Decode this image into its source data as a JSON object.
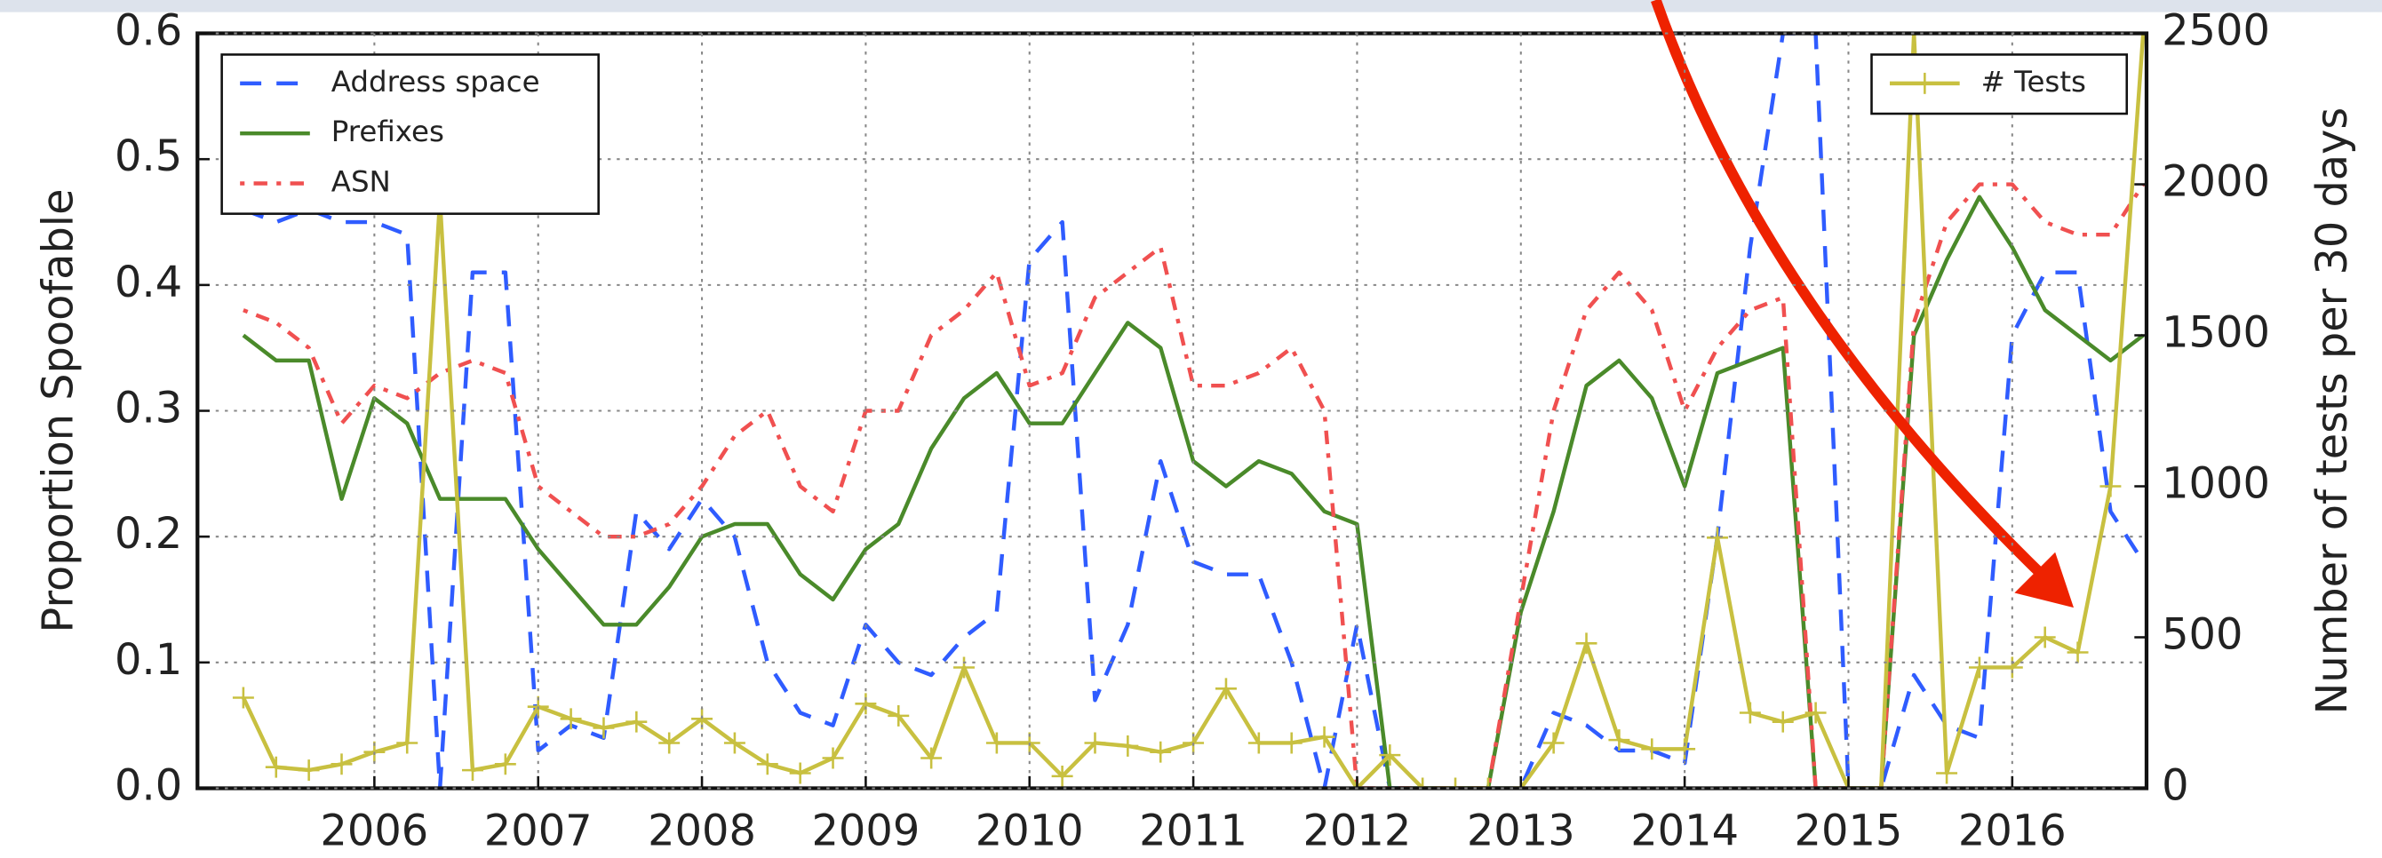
{
  "chart_data": {
    "type": "line",
    "x": [
      2005.2,
      2005.4,
      2005.6,
      2005.8,
      2006.0,
      2006.2,
      2006.4,
      2006.6,
      2006.8,
      2007.0,
      2007.2,
      2007.4,
      2007.6,
      2007.8,
      2008.0,
      2008.2,
      2008.4,
      2008.6,
      2008.8,
      2009.0,
      2009.2,
      2009.4,
      2009.6,
      2009.8,
      2010.0,
      2010.2,
      2010.4,
      2010.6,
      2010.8,
      2011.0,
      2011.2,
      2011.4,
      2011.6,
      2011.8,
      2012.0,
      2012.2,
      2012.4,
      2012.6,
      2012.8,
      2013.0,
      2013.2,
      2013.4,
      2013.6,
      2013.8,
      2014.0,
      2014.2,
      2014.4,
      2014.6,
      2014.8,
      2015.0,
      2015.2,
      2015.4,
      2015.6,
      2015.8,
      2016.0,
      2016.2,
      2016.4,
      2016.6,
      2016.8
    ],
    "series": [
      {
        "name": "Address space",
        "color": "#2f5cff",
        "dash": "14,10",
        "values": [
          0.46,
          0.45,
          0.46,
          0.45,
          0.45,
          0.44,
          0.0,
          0.41,
          0.41,
          0.03,
          0.05,
          0.04,
          0.22,
          0.19,
          0.23,
          0.2,
          0.1,
          0.06,
          0.05,
          0.13,
          0.1,
          0.09,
          0.12,
          0.14,
          0.42,
          0.45,
          0.07,
          0.13,
          0.26,
          0.18,
          0.17,
          0.17,
          0.1,
          0.0,
          0.13,
          0.0,
          0.0,
          0.0,
          0.0,
          0.0,
          0.06,
          0.05,
          0.03,
          0.03,
          0.02,
          0.2,
          0.43,
          0.6,
          0.6,
          0.0,
          0.0,
          0.09,
          0.05,
          0.04,
          0.36,
          0.41,
          0.41,
          0.22,
          0.18
        ]
      },
      {
        "name": "Prefixes",
        "color": "#4a8a2a",
        "dash": "none",
        "values": [
          0.36,
          0.34,
          0.34,
          0.23,
          0.31,
          0.29,
          0.23,
          0.23,
          0.23,
          0.19,
          0.16,
          0.13,
          0.13,
          0.16,
          0.2,
          0.21,
          0.21,
          0.17,
          0.15,
          0.19,
          0.21,
          0.27,
          0.31,
          0.33,
          0.29,
          0.29,
          0.33,
          0.37,
          0.35,
          0.26,
          0.24,
          0.26,
          0.25,
          0.22,
          0.21,
          0.0,
          0.0,
          0.0,
          0.0,
          0.14,
          0.22,
          0.32,
          0.34,
          0.31,
          0.24,
          0.33,
          0.34,
          0.35,
          0.0,
          0.0,
          0.0,
          0.36,
          0.42,
          0.47,
          0.43,
          0.38,
          0.36,
          0.34,
          0.36
        ]
      },
      {
        "name": "ASN",
        "color": "#f05050",
        "dash": "3,6,9,6",
        "values": [
          0.38,
          0.37,
          0.35,
          0.29,
          0.32,
          0.31,
          0.33,
          0.34,
          0.33,
          0.24,
          0.22,
          0.2,
          0.2,
          0.21,
          0.24,
          0.28,
          0.3,
          0.24,
          0.22,
          0.3,
          0.3,
          0.36,
          0.38,
          0.41,
          0.32,
          0.33,
          0.39,
          0.41,
          0.43,
          0.32,
          0.32,
          0.33,
          0.35,
          0.3,
          0.0,
          0.0,
          0.0,
          0.0,
          0.0,
          0.15,
          0.3,
          0.38,
          0.41,
          0.38,
          0.3,
          0.35,
          0.38,
          0.39,
          0.0,
          0.0,
          0.0,
          0.37,
          0.45,
          0.48,
          0.48,
          0.45,
          0.44,
          0.44,
          0.48
        ]
      },
      {
        "name": "# Tests",
        "color": "#c8c040",
        "dash": "none",
        "axis": "y2",
        "marker": "+",
        "values": [
          300,
          70,
          60,
          80,
          120,
          150,
          1950,
          60,
          80,
          270,
          230,
          200,
          220,
          150,
          230,
          150,
          80,
          50,
          100,
          280,
          240,
          100,
          400,
          150,
          150,
          40,
          150,
          140,
          120,
          150,
          330,
          150,
          150,
          170,
          0,
          110,
          0,
          0,
          0,
          0,
          150,
          480,
          160,
          130,
          130,
          830,
          250,
          220,
          250,
          0,
          0,
          2500,
          50,
          400,
          400,
          500,
          450,
          1000,
          2500
        ]
      }
    ],
    "ylabel": "Proportion Spoofable",
    "y2label": "Number of tests per 30 days",
    "xlim": [
      2004.92,
      2016.82
    ],
    "xticks": [
      2006,
      2007,
      2008,
      2009,
      2010,
      2011,
      2012,
      2013,
      2014,
      2015,
      2016
    ],
    "ylim": [
      0,
      0.6
    ],
    "yticks": [
      {
        "value": 0,
        "label": "0.0"
      },
      0.1,
      0.2,
      0.3,
      0.4,
      0.5,
      0.6
    ],
    "y2lim": [
      0,
      2500
    ],
    "y2ticks": [
      0,
      500,
      1000,
      1500,
      2000,
      2500
    ],
    "grid": true
  }
}
